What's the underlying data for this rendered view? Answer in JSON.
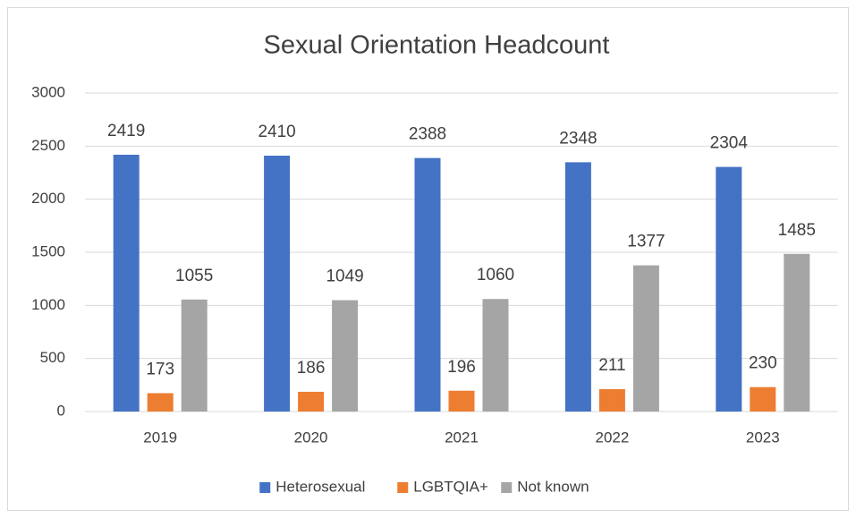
{
  "chart_data": {
    "type": "bar",
    "title": "Sexual Orientation Headcount",
    "categories": [
      "2019",
      "2020",
      "2021",
      "2022",
      "2023"
    ],
    "series": [
      {
        "name": "Heterosexual",
        "color": "#4472c4",
        "values": [
          2419,
          2410,
          2388,
          2348,
          2304
        ]
      },
      {
        "name": "LGBTQIA+",
        "color": "#ed7d31",
        "values": [
          173,
          186,
          196,
          211,
          230
        ]
      },
      {
        "name": "Not known",
        "color": "#a5a5a5",
        "values": [
          1055,
          1049,
          1060,
          1377,
          1485
        ]
      }
    ],
    "ylim": [
      0,
      3000
    ],
    "yticks": [
      0,
      500,
      1000,
      1500,
      2000,
      2500,
      3000
    ],
    "grid": true,
    "legend": "bottom"
  }
}
